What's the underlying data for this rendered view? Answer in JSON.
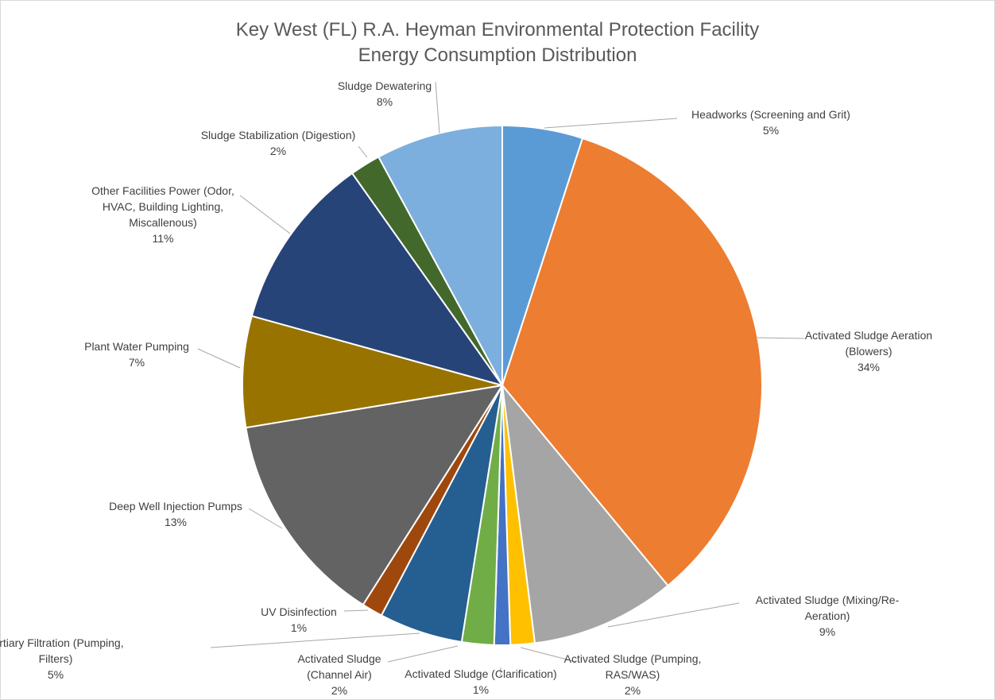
{
  "chart_data": {
    "type": "pie",
    "title": [
      "Key West (FL) R.A. Heyman Environmental Protection Facility",
      "Energy Consumption Distribution"
    ],
    "start_angle_deg": 0,
    "direction": "clockwise",
    "slices": [
      {
        "label": [
          "Headworks (Screening and Grit)"
        ],
        "value": 5,
        "value_label": "5%",
        "color": "#5B9BD5"
      },
      {
        "label": [
          "Activated Sludge Aeration",
          "(Blowers)"
        ],
        "value": 34,
        "value_label": "34%",
        "color": "#ED7D31"
      },
      {
        "label": [
          "Activated Sludge (Mixing/Re-",
          "Aeration)"
        ],
        "value": 9,
        "value_label": "9%",
        "color": "#A5A5A5"
      },
      {
        "label": [
          "Activated Sludge (Pumping,",
          "RAS/WAS)"
        ],
        "value": 1.5,
        "value_label": "2%",
        "color": "#FFC000"
      },
      {
        "label": [
          "Activated Sludge (Clarification)"
        ],
        "value": 1,
        "value_label": "1%",
        "color": "#4472C4"
      },
      {
        "label": [
          "Activated Sludge",
          "(Channel Air)"
        ],
        "value": 2,
        "value_label": "2%",
        "color": "#70AD47"
      },
      {
        "label": [
          "Tertiary Filtration (Pumping,",
          "Filters)"
        ],
        "value": 5.2,
        "value_label": "5%",
        "color": "#255E91"
      },
      {
        "label": [
          "UV Disinfection"
        ],
        "value": 1.3,
        "value_label": "1%",
        "color": "#9E480E"
      },
      {
        "label": [
          "Deep Well Injection Pumps"
        ],
        "value": 13.4,
        "value_label": "13%",
        "color": "#636363"
      },
      {
        "label": [
          "Plant Water Pumping"
        ],
        "value": 6.9,
        "value_label": "7%",
        "color": "#997300"
      },
      {
        "label": [
          "Other Facilities Power (Odor,",
          "HVAC, Building Lighting,",
          "Miscallenous)"
        ],
        "value": 10.9,
        "value_label": "11%",
        "color": "#264478"
      },
      {
        "label": [
          "Sludge Stabilization (Digestion)"
        ],
        "value": 1.9,
        "value_label": "2%",
        "color": "#43682B"
      },
      {
        "label": [
          "Sludge Dewatering"
        ],
        "value": 7.9,
        "value_label": "8%",
        "color": "#7CAFDD"
      }
    ]
  }
}
